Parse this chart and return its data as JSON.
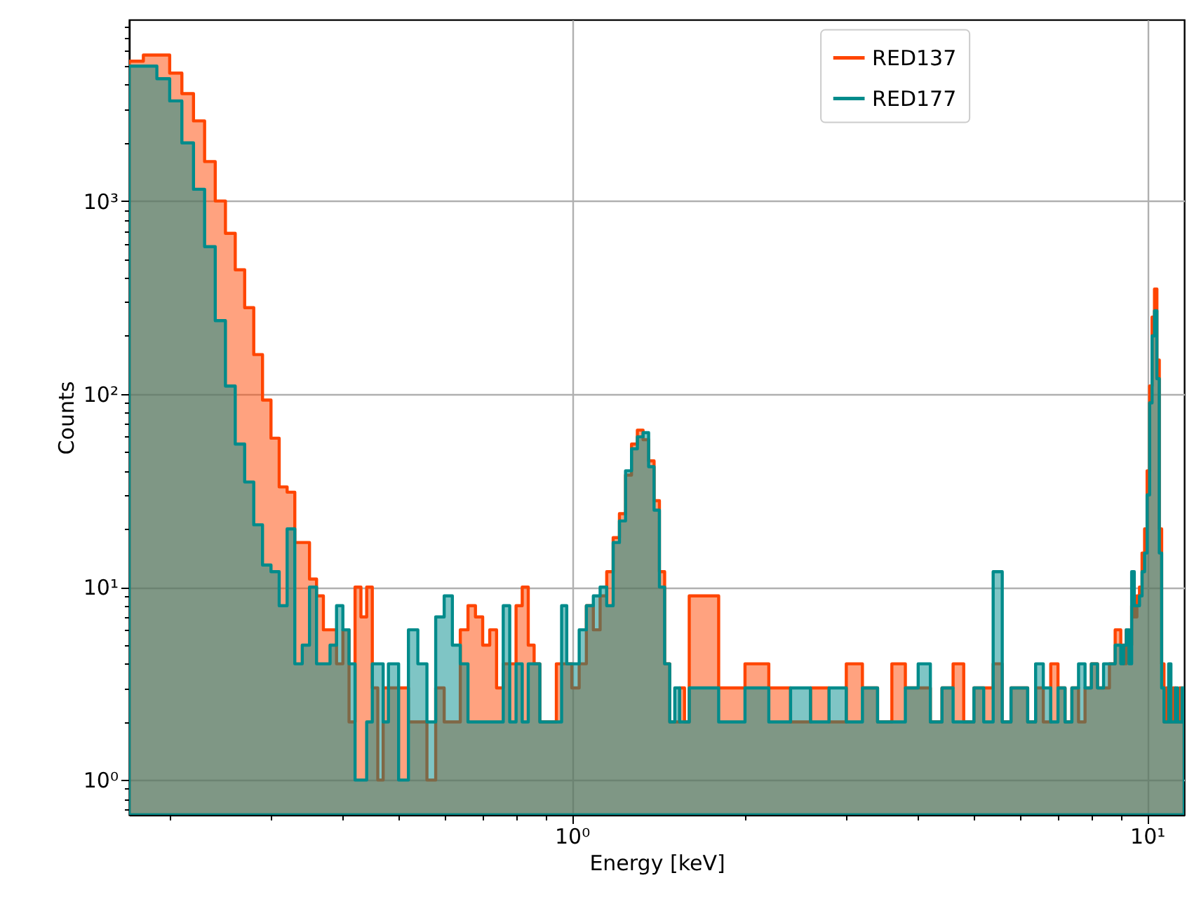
{
  "chart_data": {
    "type": "histogram",
    "xlabel": "Energy [keV]",
    "ylabel": "Counts",
    "log": "xy",
    "grid": true,
    "legend": "top right",
    "xlim": [
      0.17,
      11.6
    ],
    "ylim": [
      0.66,
      8700
    ],
    "xticks": [
      {
        "value": 0.2,
        "label": null
      },
      {
        "value": 0.3,
        "label": null
      },
      {
        "value": 0.4,
        "label": null
      },
      {
        "value": 0.5,
        "label": null
      },
      {
        "value": 0.6,
        "label": null
      },
      {
        "value": 0.7,
        "label": null
      },
      {
        "value": 0.8,
        "label": null
      },
      {
        "value": 0.9,
        "label": null
      },
      {
        "value": 1,
        "label": "10⁰"
      },
      {
        "value": 2,
        "label": null
      },
      {
        "value": 3,
        "label": null
      },
      {
        "value": 4,
        "label": null
      },
      {
        "value": 5,
        "label": null
      },
      {
        "value": 6,
        "label": null
      },
      {
        "value": 7,
        "label": null
      },
      {
        "value": 8,
        "label": null
      },
      {
        "value": 9,
        "label": null
      },
      {
        "value": 10,
        "label": "10¹"
      }
    ],
    "yticks": [
      {
        "value": 0.7,
        "label": null
      },
      {
        "value": 0.8,
        "label": null
      },
      {
        "value": 0.9,
        "label": null
      },
      {
        "value": 1,
        "label": "10⁰"
      },
      {
        "value": 2,
        "label": null
      },
      {
        "value": 3,
        "label": null
      },
      {
        "value": 4,
        "label": null
      },
      {
        "value": 5,
        "label": null
      },
      {
        "value": 6,
        "label": null
      },
      {
        "value": 7,
        "label": null
      },
      {
        "value": 8,
        "label": null
      },
      {
        "value": 9,
        "label": null
      },
      {
        "value": 10,
        "label": "10¹"
      },
      {
        "value": 20,
        "label": null
      },
      {
        "value": 30,
        "label": null
      },
      {
        "value": 40,
        "label": null
      },
      {
        "value": 50,
        "label": null
      },
      {
        "value": 60,
        "label": null
      },
      {
        "value": 70,
        "label": null
      },
      {
        "value": 80,
        "label": null
      },
      {
        "value": 90,
        "label": null
      },
      {
        "value": 100,
        "label": "10²"
      },
      {
        "value": 200,
        "label": null
      },
      {
        "value": 300,
        "label": null
      },
      {
        "value": 400,
        "label": null
      },
      {
        "value": 500,
        "label": null
      },
      {
        "value": 600,
        "label": null
      },
      {
        "value": 700,
        "label": null
      },
      {
        "value": 800,
        "label": null
      },
      {
        "value": 900,
        "label": null
      },
      {
        "value": 1000,
        "label": "10³"
      },
      {
        "value": 2000,
        "label": null
      },
      {
        "value": 3000,
        "label": null
      },
      {
        "value": 4000,
        "label": null
      },
      {
        "value": 5000,
        "label": null
      },
      {
        "value": 6000,
        "label": null
      },
      {
        "value": 7000,
        "label": null
      },
      {
        "value": 8000,
        "label": null
      }
    ],
    "bins": [
      0.17,
      0.18,
      0.19,
      0.2,
      0.21,
      0.22,
      0.23,
      0.24,
      0.25,
      0.26,
      0.27,
      0.28,
      0.29,
      0.3,
      0.31,
      0.32,
      0.33,
      0.34,
      0.35,
      0.36,
      0.37,
      0.38,
      0.39,
      0.4,
      0.41,
      0.42,
      0.43,
      0.44,
      0.45,
      0.46,
      0.47,
      0.48,
      0.5,
      0.52,
      0.54,
      0.56,
      0.58,
      0.6,
      0.62,
      0.64,
      0.66,
      0.68,
      0.7,
      0.72,
      0.74,
      0.76,
      0.78,
      0.8,
      0.82,
      0.84,
      0.86,
      0.88,
      0.9,
      0.92,
      0.94,
      0.96,
      0.98,
      1.0,
      1.03,
      1.06,
      1.09,
      1.12,
      1.15,
      1.18,
      1.21,
      1.24,
      1.27,
      1.3,
      1.33,
      1.36,
      1.39,
      1.42,
      1.45,
      1.48,
      1.51,
      1.54,
      1.57,
      1.6,
      1.8,
      2.0,
      2.2,
      2.4,
      2.6,
      2.8,
      3.0,
      3.2,
      3.4,
      3.6,
      3.8,
      4.0,
      4.2,
      4.4,
      4.6,
      4.8,
      5.0,
      5.2,
      5.4,
      5.6,
      5.8,
      6.0,
      6.2,
      6.4,
      6.6,
      6.8,
      7.0,
      7.2,
      7.4,
      7.6,
      7.8,
      8.0,
      8.2,
      8.4,
      8.6,
      8.8,
      9.0,
      9.1,
      9.2,
      9.3,
      9.4,
      9.5,
      9.6,
      9.7,
      9.8,
      9.9,
      10.0,
      10.1,
      10.2,
      10.3,
      10.4,
      10.5,
      10.6,
      10.7,
      10.8,
      10.9,
      11.0,
      11.1,
      11.2,
      11.3,
      11.4,
      11.5,
      11.6
    ],
    "series": [
      {
        "name": "RED137",
        "color": "#ff4500",
        "values": [
          5300,
          5700,
          5700,
          4600,
          3600,
          2600,
          1600,
          1000,
          680,
          440,
          280,
          160,
          93,
          59,
          33,
          31,
          17,
          17,
          11,
          9,
          6,
          6,
          4,
          6,
          2,
          10,
          7,
          10,
          3,
          1,
          3,
          3,
          3,
          2,
          2,
          1,
          3,
          2,
          2,
          6,
          8,
          7,
          5,
          6,
          3,
          4,
          4,
          8,
          10,
          5,
          4,
          2,
          2,
          2,
          4,
          4,
          4,
          3,
          4,
          8,
          6,
          9,
          12,
          18,
          24,
          38,
          55,
          65,
          58,
          45,
          28,
          12,
          4,
          2,
          2,
          3,
          2,
          9,
          3,
          4,
          3,
          2,
          3,
          2,
          4,
          3,
          2,
          4,
          3,
          3,
          2,
          3,
          4,
          2,
          3,
          3,
          4,
          2,
          3,
          3,
          2,
          3,
          2,
          4,
          3,
          2,
          3,
          2,
          3,
          4,
          3,
          3,
          4,
          6,
          5,
          4,
          6,
          5,
          8,
          7,
          9,
          10,
          15,
          20,
          40,
          110,
          250,
          350,
          150,
          20,
          4,
          2,
          3,
          2,
          2,
          3,
          2,
          2,
          3,
          2
        ]
      },
      {
        "name": "RED177",
        "color": "#008b8b",
        "values": [
          5000,
          5000,
          4300,
          3300,
          2000,
          1150,
          580,
          240,
          110,
          55,
          35,
          21,
          13,
          12,
          8,
          20,
          4,
          5,
          10,
          4,
          4,
          5,
          8,
          6,
          4,
          1,
          1,
          2,
          4,
          4,
          2,
          4,
          1,
          6,
          4,
          2,
          7,
          9,
          5,
          4,
          2,
          2,
          2,
          2,
          2,
          8,
          2,
          4,
          2,
          4,
          4,
          2,
          2,
          2,
          2,
          8,
          4,
          4,
          6,
          8,
          9,
          10,
          8,
          17,
          22,
          40,
          52,
          60,
          63,
          42,
          25,
          10,
          4,
          2,
          3,
          2,
          2,
          3,
          2,
          3,
          2,
          3,
          2,
          3,
          2,
          3,
          2,
          2,
          3,
          4,
          2,
          3,
          2,
          2,
          3,
          2,
          12,
          2,
          3,
          3,
          2,
          4,
          3,
          2,
          3,
          2,
          3,
          4,
          3,
          4,
          3,
          4,
          4,
          5,
          4,
          5,
          6,
          4,
          12,
          8,
          8,
          9,
          12,
          15,
          30,
          90,
          200,
          270,
          120,
          15,
          3,
          2,
          2,
          4,
          2,
          2,
          3,
          2,
          2,
          3
        ]
      }
    ]
  }
}
